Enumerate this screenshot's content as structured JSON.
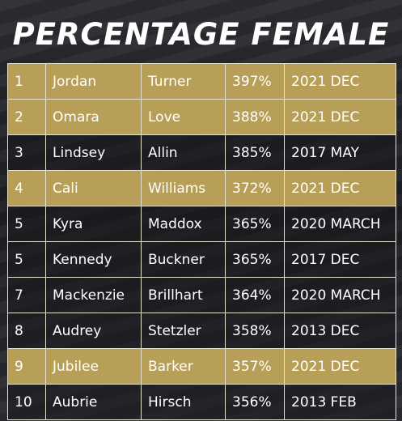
{
  "title": "PERCENTAGE FEMALE",
  "colors": {
    "gold_row": "#b89f58",
    "dark_row": "#1f2124",
    "text": "#ffffff"
  },
  "rows": [
    {
      "rank": "1",
      "first": "Jordan",
      "last": "Turner",
      "pct": "397%",
      "date": "2021 DEC",
      "highlight": true
    },
    {
      "rank": "2",
      "first": "Omara",
      "last": "Love",
      "pct": "388%",
      "date": "2021 DEC",
      "highlight": true
    },
    {
      "rank": "3",
      "first": "Lindsey",
      "last": "Allin",
      "pct": "385%",
      "date": "2017 MAY",
      "highlight": false
    },
    {
      "rank": "4",
      "first": "Cali",
      "last": "Williams",
      "pct": "372%",
      "date": "2021 DEC",
      "highlight": true
    },
    {
      "rank": "5",
      "first": "Kyra",
      "last": "Maddox",
      "pct": "365%",
      "date": "2020 MARCH",
      "highlight": false
    },
    {
      "rank": "5",
      "first": "Kennedy",
      "last": "Buckner",
      "pct": "365%",
      "date": "2017 DEC",
      "highlight": false
    },
    {
      "rank": "7",
      "first": "Mackenzie",
      "last": "Brillhart",
      "pct": "364%",
      "date": "2020 MARCH",
      "highlight": false
    },
    {
      "rank": "8",
      "first": "Audrey",
      "last": "Stetzler",
      "pct": "358%",
      "date": "2013 DEC",
      "highlight": false
    },
    {
      "rank": "9",
      "first": "Jubilee",
      "last": "Barker",
      "pct": "357%",
      "date": "2021 DEC",
      "highlight": true
    },
    {
      "rank": "10",
      "first": "Aubrie",
      "last": "Hirsch",
      "pct": "356%",
      "date": "2013 FEB",
      "highlight": false
    }
  ]
}
